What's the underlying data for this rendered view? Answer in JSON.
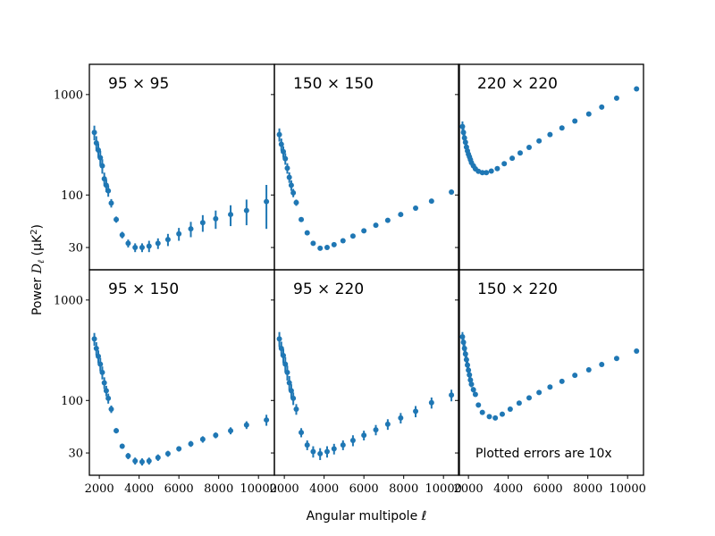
{
  "figure": {
    "xlabel": "Angular multipole ℓ",
    "ylabel": "Power D_ℓ (μK²)",
    "ylabel_parts": {
      "a": "Power ",
      "b": "D",
      "c": "ℓ",
      "d": " (μK",
      "e": "2",
      "f": ")"
    },
    "note": "Plotted errors are 10x",
    "marker_color": "#1f77b4"
  },
  "chart_data": {
    "type": "scatter",
    "layout": "2x3 small multiples, shared x and y axes",
    "x_scale": "linear",
    "y_scale": "log",
    "xlim": [
      1500,
      10800
    ],
    "ylim": [
      18,
      2000
    ],
    "x_ticks": [
      2000,
      4000,
      6000,
      8000,
      10000
    ],
    "x_tick_labels": [
      "2000",
      "4000",
      "6000",
      "8000",
      "10000"
    ],
    "y_ticks": [
      30,
      100,
      1000
    ],
    "y_tick_labels": [
      "30",
      "100",
      "1000"
    ],
    "grid": false,
    "panels": [
      {
        "title": "95 × 95",
        "points": [
          {
            "x": 1750,
            "y": 420,
            "err": 70
          },
          {
            "x": 1850,
            "y": 330,
            "err": 55
          },
          {
            "x": 1950,
            "y": 280,
            "err": 45
          },
          {
            "x": 2050,
            "y": 235,
            "err": 40
          },
          {
            "x": 2150,
            "y": 195,
            "err": 32
          },
          {
            "x": 2250,
            "y": 145,
            "err": 22
          },
          {
            "x": 2350,
            "y": 125,
            "err": 18
          },
          {
            "x": 2450,
            "y": 110,
            "err": 14
          },
          {
            "x": 2600,
            "y": 83,
            "err": 8
          },
          {
            "x": 2850,
            "y": 57,
            "err": 4
          },
          {
            "x": 3150,
            "y": 40,
            "err": 3
          },
          {
            "x": 3450,
            "y": 33,
            "err": 3
          },
          {
            "x": 3800,
            "y": 30,
            "err": 3
          },
          {
            "x": 4150,
            "y": 30,
            "err": 3
          },
          {
            "x": 4500,
            "y": 31,
            "err": 4
          },
          {
            "x": 4950,
            "y": 33,
            "err": 4
          },
          {
            "x": 5450,
            "y": 36,
            "err": 5
          },
          {
            "x": 6000,
            "y": 41,
            "err": 6
          },
          {
            "x": 6600,
            "y": 46,
            "err": 8
          },
          {
            "x": 7200,
            "y": 53,
            "err": 10
          },
          {
            "x": 7850,
            "y": 58,
            "err": 12
          },
          {
            "x": 8600,
            "y": 64,
            "err": 15
          },
          {
            "x": 9400,
            "y": 70,
            "err": 20
          },
          {
            "x": 10400,
            "y": 86,
            "err": 40
          }
        ]
      },
      {
        "title": "150 × 150",
        "points": [
          {
            "x": 1750,
            "y": 400,
            "err": 60
          },
          {
            "x": 1850,
            "y": 320,
            "err": 45
          },
          {
            "x": 1950,
            "y": 270,
            "err": 35
          },
          {
            "x": 2050,
            "y": 230,
            "err": 30
          },
          {
            "x": 2150,
            "y": 185,
            "err": 22
          },
          {
            "x": 2250,
            "y": 150,
            "err": 18
          },
          {
            "x": 2350,
            "y": 125,
            "err": 15
          },
          {
            "x": 2450,
            "y": 105,
            "err": 10
          },
          {
            "x": 2600,
            "y": 84,
            "err": 6
          },
          {
            "x": 2850,
            "y": 57,
            "err": 3
          },
          {
            "x": 3150,
            "y": 42,
            "err": 2
          },
          {
            "x": 3450,
            "y": 33,
            "err": 1.5
          },
          {
            "x": 3800,
            "y": 29.5,
            "err": 1
          },
          {
            "x": 4150,
            "y": 30,
            "err": 1
          },
          {
            "x": 4500,
            "y": 32,
            "err": 1
          },
          {
            "x": 4950,
            "y": 35,
            "err": 1
          },
          {
            "x": 5450,
            "y": 39,
            "err": 1
          },
          {
            "x": 6000,
            "y": 44,
            "err": 1
          },
          {
            "x": 6600,
            "y": 50,
            "err": 1
          },
          {
            "x": 7200,
            "y": 56,
            "err": 1
          },
          {
            "x": 7850,
            "y": 64,
            "err": 1
          },
          {
            "x": 8600,
            "y": 74,
            "err": 1.5
          },
          {
            "x": 9400,
            "y": 87,
            "err": 2
          },
          {
            "x": 10400,
            "y": 107,
            "err": 3
          }
        ]
      },
      {
        "title": "220 × 220",
        "points": [
          {
            "x": 1700,
            "y": 480,
            "err": 60
          },
          {
            "x": 1750,
            "y": 420,
            "err": 50
          },
          {
            "x": 1800,
            "y": 370,
            "err": 40
          },
          {
            "x": 1850,
            "y": 335,
            "err": 35
          },
          {
            "x": 1900,
            "y": 300,
            "err": 30
          },
          {
            "x": 1950,
            "y": 275,
            "err": 25
          },
          {
            "x": 2000,
            "y": 255,
            "err": 22
          },
          {
            "x": 2050,
            "y": 240,
            "err": 20
          },
          {
            "x": 2100,
            "y": 225,
            "err": 18
          },
          {
            "x": 2150,
            "y": 210,
            "err": 15
          },
          {
            "x": 2250,
            "y": 195,
            "err": 12
          },
          {
            "x": 2350,
            "y": 182,
            "err": 10
          },
          {
            "x": 2500,
            "y": 172,
            "err": 8
          },
          {
            "x": 2700,
            "y": 167,
            "err": 6
          },
          {
            "x": 2900,
            "y": 167,
            "err": 5
          },
          {
            "x": 3150,
            "y": 173,
            "err": 4
          },
          {
            "x": 3450,
            "y": 183,
            "err": 3
          },
          {
            "x": 3800,
            "y": 205,
            "err": 3
          },
          {
            "x": 4200,
            "y": 232,
            "err": 3
          },
          {
            "x": 4600,
            "y": 262,
            "err": 3
          },
          {
            "x": 5050,
            "y": 298,
            "err": 3
          },
          {
            "x": 5550,
            "y": 345,
            "err": 3
          },
          {
            "x": 6100,
            "y": 400,
            "err": 4
          },
          {
            "x": 6700,
            "y": 465,
            "err": 4
          },
          {
            "x": 7350,
            "y": 545,
            "err": 5
          },
          {
            "x": 8050,
            "y": 640,
            "err": 6
          },
          {
            "x": 8700,
            "y": 750,
            "err": 7
          },
          {
            "x": 9450,
            "y": 920,
            "err": 8
          },
          {
            "x": 10450,
            "y": 1140,
            "err": 10
          }
        ]
      },
      {
        "title": "95 × 150",
        "points": [
          {
            "x": 1750,
            "y": 410,
            "err": 60
          },
          {
            "x": 1850,
            "y": 330,
            "err": 50
          },
          {
            "x": 1950,
            "y": 275,
            "err": 40
          },
          {
            "x": 2050,
            "y": 230,
            "err": 35
          },
          {
            "x": 2150,
            "y": 190,
            "err": 28
          },
          {
            "x": 2250,
            "y": 150,
            "err": 20
          },
          {
            "x": 2350,
            "y": 125,
            "err": 15
          },
          {
            "x": 2450,
            "y": 105,
            "err": 12
          },
          {
            "x": 2600,
            "y": 82,
            "err": 7
          },
          {
            "x": 2850,
            "y": 50,
            "err": 3
          },
          {
            "x": 3150,
            "y": 35,
            "err": 2
          },
          {
            "x": 3450,
            "y": 28,
            "err": 2
          },
          {
            "x": 3800,
            "y": 25,
            "err": 2
          },
          {
            "x": 4150,
            "y": 24.5,
            "err": 2
          },
          {
            "x": 4500,
            "y": 25,
            "err": 2
          },
          {
            "x": 4950,
            "y": 27,
            "err": 2
          },
          {
            "x": 5450,
            "y": 29.5,
            "err": 2
          },
          {
            "x": 6000,
            "y": 33,
            "err": 2
          },
          {
            "x": 6600,
            "y": 37,
            "err": 2.5
          },
          {
            "x": 7200,
            "y": 41,
            "err": 3
          },
          {
            "x": 7850,
            "y": 45,
            "err": 3
          },
          {
            "x": 8600,
            "y": 50,
            "err": 4
          },
          {
            "x": 9400,
            "y": 57,
            "err": 5
          },
          {
            "x": 10400,
            "y": 64,
            "err": 8
          }
        ]
      },
      {
        "title": "95 × 220",
        "points": [
          {
            "x": 1750,
            "y": 410,
            "err": 70
          },
          {
            "x": 1850,
            "y": 330,
            "err": 55
          },
          {
            "x": 1950,
            "y": 280,
            "err": 45
          },
          {
            "x": 2050,
            "y": 230,
            "err": 40
          },
          {
            "x": 2150,
            "y": 190,
            "err": 32
          },
          {
            "x": 2250,
            "y": 150,
            "err": 25
          },
          {
            "x": 2350,
            "y": 125,
            "err": 20
          },
          {
            "x": 2450,
            "y": 105,
            "err": 15
          },
          {
            "x": 2600,
            "y": 82,
            "err": 10
          },
          {
            "x": 2850,
            "y": 48,
            "err": 5
          },
          {
            "x": 3150,
            "y": 36,
            "err": 4
          },
          {
            "x": 3450,
            "y": 31,
            "err": 4
          },
          {
            "x": 3800,
            "y": 29.5,
            "err": 4
          },
          {
            "x": 4150,
            "y": 31,
            "err": 4
          },
          {
            "x": 4500,
            "y": 33,
            "err": 4
          },
          {
            "x": 4950,
            "y": 36,
            "err": 4
          },
          {
            "x": 5450,
            "y": 40,
            "err": 5
          },
          {
            "x": 6000,
            "y": 45,
            "err": 5
          },
          {
            "x": 6600,
            "y": 51,
            "err": 6
          },
          {
            "x": 7200,
            "y": 58,
            "err": 7
          },
          {
            "x": 7850,
            "y": 67,
            "err": 8
          },
          {
            "x": 8600,
            "y": 78,
            "err": 10
          },
          {
            "x": 9400,
            "y": 95,
            "err": 12
          },
          {
            "x": 10400,
            "y": 113,
            "err": 15
          }
        ]
      },
      {
        "title": "150 × 220",
        "points": [
          {
            "x": 1700,
            "y": 430,
            "err": 50
          },
          {
            "x": 1750,
            "y": 380,
            "err": 45
          },
          {
            "x": 1800,
            "y": 330,
            "err": 38
          },
          {
            "x": 1850,
            "y": 290,
            "err": 30
          },
          {
            "x": 1900,
            "y": 255,
            "err": 25
          },
          {
            "x": 1950,
            "y": 225,
            "err": 20
          },
          {
            "x": 2000,
            "y": 200,
            "err": 18
          },
          {
            "x": 2050,
            "y": 180,
            "err": 15
          },
          {
            "x": 2100,
            "y": 160,
            "err": 12
          },
          {
            "x": 2150,
            "y": 145,
            "err": 10
          },
          {
            "x": 2250,
            "y": 128,
            "err": 8
          },
          {
            "x": 2350,
            "y": 115,
            "err": 6
          },
          {
            "x": 2500,
            "y": 90,
            "err": 5
          },
          {
            "x": 2700,
            "y": 76,
            "err": 4
          },
          {
            "x": 3050,
            "y": 69,
            "err": 3
          },
          {
            "x": 3350,
            "y": 67,
            "err": 3
          },
          {
            "x": 3700,
            "y": 73,
            "err": 3
          },
          {
            "x": 4100,
            "y": 82,
            "err": 3
          },
          {
            "x": 4550,
            "y": 94,
            "err": 3
          },
          {
            "x": 5050,
            "y": 106,
            "err": 3
          },
          {
            "x": 5550,
            "y": 120,
            "err": 3
          },
          {
            "x": 6100,
            "y": 136,
            "err": 3
          },
          {
            "x": 6700,
            "y": 155,
            "err": 4
          },
          {
            "x": 7350,
            "y": 178,
            "err": 4
          },
          {
            "x": 8050,
            "y": 202,
            "err": 5
          },
          {
            "x": 8700,
            "y": 228,
            "err": 5
          },
          {
            "x": 9450,
            "y": 262,
            "err": 6
          },
          {
            "x": 10450,
            "y": 310,
            "err": 8
          }
        ]
      }
    ]
  }
}
